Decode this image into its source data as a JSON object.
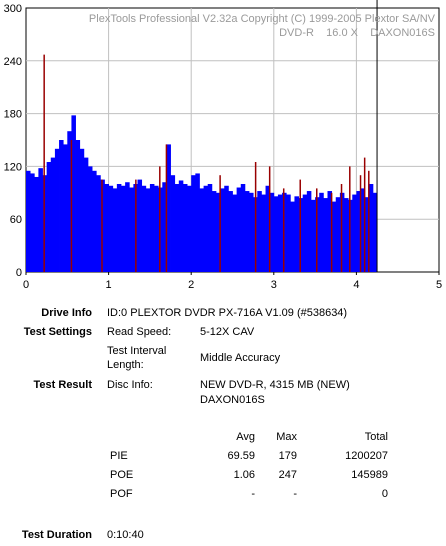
{
  "chart_data": {
    "type": "bar",
    "title": "PlexTools Professional V2.32a Copyright (C) 1999-2005 Plextor SA/NV",
    "subtitle": "DVD-R    16.0 X    DAXON016S",
    "x_ticks": [
      "0",
      "1",
      "2",
      "3",
      "4",
      "5"
    ],
    "y_ticks": [
      "0",
      "60",
      "120",
      "180",
      "240",
      "300"
    ],
    "xlim": [
      0,
      5
    ],
    "ylim": [
      0,
      300
    ],
    "grid": true,
    "series": [
      {
        "name": "PIE",
        "color": "#0000ff",
        "x": [
          0.0,
          0.05,
          0.1,
          0.15,
          0.2,
          0.25,
          0.3,
          0.35,
          0.4,
          0.45,
          0.5,
          0.55,
          0.6,
          0.65,
          0.7,
          0.75,
          0.8,
          0.85,
          0.9,
          0.95,
          1.0,
          1.05,
          1.1,
          1.15,
          1.2,
          1.25,
          1.3,
          1.35,
          1.4,
          1.45,
          1.5,
          1.55,
          1.6,
          1.65,
          1.7,
          1.75,
          1.8,
          1.85,
          1.9,
          1.95,
          2.0,
          2.05,
          2.1,
          2.15,
          2.2,
          2.25,
          2.3,
          2.35,
          2.4,
          2.45,
          2.5,
          2.55,
          2.6,
          2.65,
          2.7,
          2.75,
          2.8,
          2.85,
          2.9,
          2.95,
          3.0,
          3.05,
          3.1,
          3.15,
          3.2,
          3.25,
          3.3,
          3.35,
          3.4,
          3.45,
          3.5,
          3.55,
          3.6,
          3.65,
          3.7,
          3.75,
          3.8,
          3.85,
          3.9,
          3.95,
          4.0,
          4.05,
          4.1,
          4.15,
          4.2
        ],
        "values": [
          115,
          112,
          108,
          118,
          110,
          125,
          130,
          140,
          150,
          145,
          160,
          178,
          150,
          140,
          130,
          120,
          115,
          110,
          105,
          100,
          98,
          95,
          100,
          98,
          102,
          96,
          100,
          105,
          98,
          95,
          100,
          98,
          96,
          102,
          145,
          110,
          100,
          104,
          100,
          98,
          110,
          112,
          95,
          98,
          100,
          92,
          90,
          95,
          98,
          92,
          88,
          96,
          100,
          92,
          90,
          85,
          92,
          88,
          98,
          90,
          86,
          88,
          90,
          88,
          80,
          86,
          84,
          88,
          92,
          82,
          85,
          90,
          84,
          92,
          80,
          85,
          90,
          84,
          82,
          88,
          92,
          95,
          85,
          100,
          90
        ]
      },
      {
        "name": "POE",
        "color": "#990000",
        "x": [
          0.22,
          0.55,
          0.92,
          1.33,
          1.62,
          1.7,
          2.35,
          2.78,
          2.95,
          3.12,
          3.32,
          3.52,
          3.7,
          3.82,
          3.92,
          4.05,
          4.1,
          4.15
        ],
        "values": [
          247,
          150,
          105,
          105,
          120,
          145,
          110,
          125,
          120,
          95,
          105,
          95,
          90,
          100,
          120,
          110,
          130,
          115
        ]
      }
    ]
  },
  "info": {
    "drive_info_label": "Drive Info",
    "drive_info_value": "ID:0 PLEXTOR DVDR PX-716A V1.09 (#538634)",
    "test_settings_label": "Test Settings",
    "read_speed_label": "Read Speed:",
    "read_speed_value": "5-12X CAV",
    "interval_label_1": "Test Interval",
    "interval_label_2": "Length:",
    "interval_value": "Middle Accuracy",
    "test_result_label": "Test Result",
    "disc_info_label": "Disc Info:",
    "disc_info_value_1": "NEW DVD-R, 4315 MB (NEW)",
    "disc_info_value_2": "DAXON016S",
    "test_duration_label": "Test Duration",
    "test_duration_value": "0:10:40"
  },
  "stats": {
    "headers": {
      "avg": "Avg",
      "max": "Max",
      "total": "Total"
    },
    "rows": [
      {
        "name": "PIE",
        "avg": "69.59",
        "max": "179",
        "total": "1200207"
      },
      {
        "name": "POE",
        "avg": "1.06",
        "max": "247",
        "total": "145989"
      },
      {
        "name": "POF",
        "avg": "-",
        "max": "-",
        "total": "0"
      }
    ]
  }
}
